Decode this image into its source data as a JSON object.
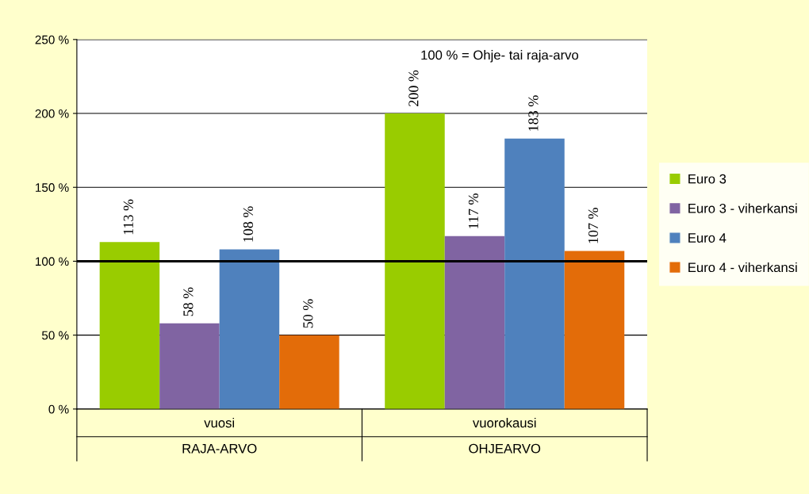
{
  "chart_data": {
    "type": "bar",
    "categories": [
      "vuosi",
      "vuorokausi"
    ],
    "series": [
      {
        "name": "Euro 3",
        "color": "#99cc00",
        "values": [
          113,
          200
        ],
        "value_labels": [
          "113 %",
          "200 %"
        ]
      },
      {
        "name": "Euro 3 - viherkansi",
        "color": "#8064a2",
        "values": [
          58,
          117
        ],
        "value_labels": [
          "58 %",
          "117 %"
        ]
      },
      {
        "name": "Euro 4",
        "color": "#4f81bd",
        "values": [
          108,
          183
        ],
        "value_labels": [
          "108 %",
          "183 %"
        ]
      },
      {
        "name": "Euro 4 - viherkansi",
        "color": "#e36c09",
        "values": [
          50,
          107
        ],
        "value_labels": [
          "50 %",
          "107 %"
        ]
      }
    ],
    "ylim": [
      0,
      250
    ],
    "yticks": [
      {
        "value": 0,
        "label": "0 %"
      },
      {
        "value": 50,
        "label": "50 %"
      },
      {
        "value": 100,
        "label": "100 %"
      },
      {
        "value": 150,
        "label": "150 %"
      },
      {
        "value": 200,
        "label": "200 %"
      },
      {
        "value": 250,
        "label": "250 %"
      }
    ],
    "ref_lines": [
      {
        "axis": "y",
        "value": 100,
        "color": "#000000"
      }
    ],
    "annotations": [
      "100 % = Ohje- tai raja-arvo",
      "RAJA-ARVO",
      "OHJEARVO"
    ],
    "grid": "y",
    "legend": "right"
  }
}
